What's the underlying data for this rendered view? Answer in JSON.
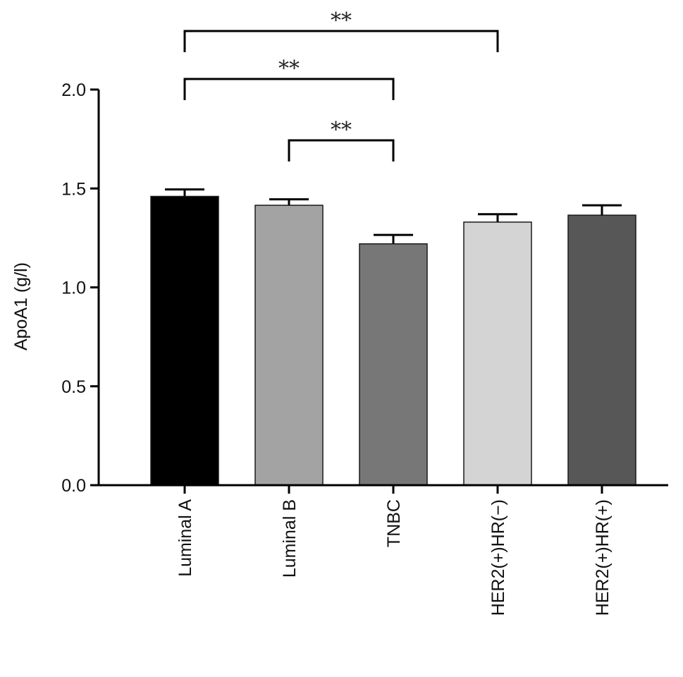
{
  "chart_data": {
    "type": "bar",
    "categories": [
      "Luminal A",
      "Luminal B",
      "TNBC",
      "HER2(+)HR(−)",
      "HER2(+)HR(+)"
    ],
    "values": [
      1.46,
      1.415,
      1.22,
      1.33,
      1.365
    ],
    "errors": [
      0.035,
      0.03,
      0.045,
      0.04,
      0.05
    ],
    "bar_colors": [
      "#000000",
      "#a3a3a3",
      "#777777",
      "#d4d4d4",
      "#575757"
    ],
    "ylabel": "ApoA1 (g/l)",
    "xlabel": "",
    "ylim": [
      0,
      2.0
    ],
    "yticks": [
      0.0,
      0.5,
      1.0,
      1.5,
      2.0
    ],
    "ytick_labels": [
      "0.0",
      "0.5",
      "1.0",
      "1.5",
      "2.0"
    ],
    "grid": false,
    "significance": [
      {
        "from": 0,
        "to": 3,
        "label": "**"
      },
      {
        "from": 0,
        "to": 2,
        "label": "**"
      },
      {
        "from": 1,
        "to": 2,
        "label": "**"
      }
    ]
  }
}
